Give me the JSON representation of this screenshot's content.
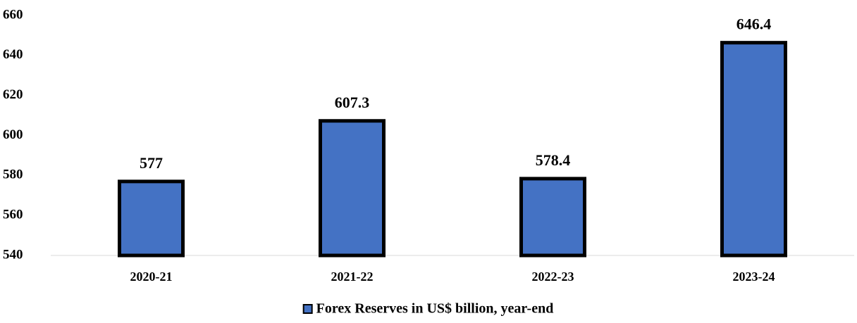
{
  "chart_data": {
    "type": "bar",
    "categories": [
      "2020-21",
      "2021-22",
      "2022-23",
      "2023-24"
    ],
    "series": [
      {
        "name": "Forex Reserves in US$ billion, year-end",
        "color": "#4472c4",
        "values": [
          577,
          607.3,
          578.4,
          646.4
        ]
      }
    ],
    "ylim": [
      540,
      660
    ],
    "yticks": [
      540,
      560,
      580,
      600,
      620,
      640,
      660
    ],
    "grid": false,
    "legend": "bottom"
  }
}
